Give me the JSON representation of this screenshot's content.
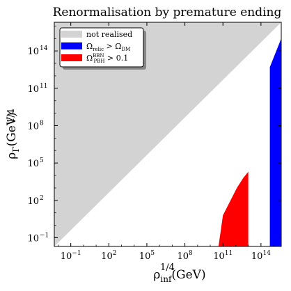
{
  "chart_data": {
    "type": "area",
    "title": "Renormalisation by premature ending",
    "xlabel": {
      "base": "ρ",
      "sup": "1/4",
      "sub": "inf",
      "unit": "(GeV)"
    },
    "ylabel": {
      "base": "ρ",
      "sup": "1/4",
      "sub": "Γ",
      "unit": "(GeV)"
    },
    "xscale": "log",
    "yscale": "log",
    "xlim": [
      -2.3,
      15.6
    ],
    "ylim": [
      -1.7,
      16.3
    ],
    "xticks": [
      {
        "exp": -1,
        "label": "10",
        "sup": "−1"
      },
      {
        "exp": 2,
        "label": "10",
        "sup": "2"
      },
      {
        "exp": 5,
        "label": "10",
        "sup": "5"
      },
      {
        "exp": 8,
        "label": "10",
        "sup": "8"
      },
      {
        "exp": 11,
        "label": "10",
        "sup": "11"
      },
      {
        "exp": 14,
        "label": "10",
        "sup": "14"
      }
    ],
    "yticks": [
      {
        "exp": -1,
        "label": "10",
        "sup": "−1"
      },
      {
        "exp": 2,
        "label": "10",
        "sup": "2"
      },
      {
        "exp": 5,
        "label": "10",
        "sup": "5"
      },
      {
        "exp": 8,
        "label": "10",
        "sup": "8"
      },
      {
        "exp": 11,
        "label": "10",
        "sup": "11"
      },
      {
        "exp": 14,
        "label": "10",
        "sup": "14"
      }
    ],
    "grid": false,
    "legend_position": "top-left",
    "series": [
      {
        "name": "not realised",
        "color": "#d3d3d3",
        "region_log10": [
          [
            -2.3,
            -1.7
          ],
          [
            -2.3,
            16.3
          ],
          [
            15.6,
            16.3
          ],
          [
            -2.3,
            -1.7
          ]
        ]
      },
      {
        "name": "Ω_relic > Ω_DM",
        "color": "#0000ff",
        "region_log10": [
          [
            14.7,
            -1.7
          ],
          [
            14.7,
            12.7
          ],
          [
            15.6,
            15.0
          ],
          [
            15.6,
            -1.7
          ],
          [
            14.7,
            -1.7
          ]
        ]
      },
      {
        "name": "Ω^BBN_PBH > 0.1",
        "color": "#ff0000",
        "region_log10": [
          [
            10.65,
            -1.7
          ],
          [
            11.0,
            0.8
          ],
          [
            11.5,
            1.8
          ],
          [
            12.1,
            3.0
          ],
          [
            12.6,
            3.8
          ],
          [
            13.0,
            4.3
          ],
          [
            13.0,
            -1.7
          ],
          [
            10.65,
            -1.7
          ]
        ]
      }
    ],
    "legend": [
      {
        "label": "not realised",
        "color": "#d3d3d3"
      },
      {
        "label": "Ω",
        "sub": "relic",
        "mid": " > Ω",
        "sub2": "DM",
        "color": "#0000ff"
      },
      {
        "label": "Ω",
        "sup": "BBN",
        "sub": "PBH",
        "mid": " > 0.1",
        "color": "#ff0000"
      }
    ]
  }
}
